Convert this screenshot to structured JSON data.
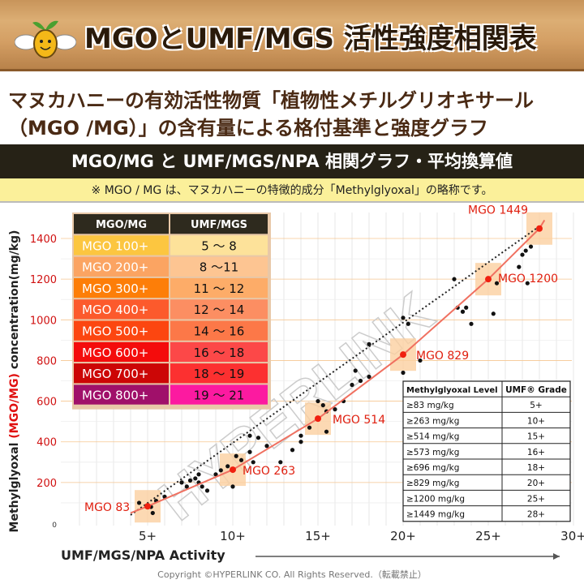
{
  "header": {
    "title": "MGOとUMF/MGS 活性強度相関表",
    "subtitle_line1": "マヌカハニーの有効活性物質「植物性メチルグリオキサール",
    "subtitle_line2": "（MGO /MG）」の含有量による格付基準と強度グラフ",
    "band": "MGO/MG と UMF/MGS/NPA 相関グラフ・平均換算値",
    "note": "※ MGO / MG は、マヌカハニーの特徴的成分「Methylglyoxal」の略称です。"
  },
  "watermark": "HYPERLINK",
  "footer": "Copyright ©HYPERLINK CO.  All Rights Reserved.（転載禁止）",
  "colors": {
    "curve": "#f07060",
    "point_label": "#e02010",
    "band": "#fbd0a0"
  },
  "chart_data": {
    "type": "scatter",
    "xlabel": "UMF/MGS/NPA Activity",
    "ylabel_parts": [
      "Methylglyoxal ",
      "(MGO/MG)",
      " concentration(mg/kg)"
    ],
    "xlim": [
      0,
      30
    ],
    "ylim": [
      0,
      1450
    ],
    "xticks": [
      5,
      10,
      15,
      20,
      25,
      30
    ],
    "xtick_labels": [
      "5+",
      "10+",
      "15+",
      "20+",
      "25+",
      "30+"
    ],
    "yticks": [
      0,
      200,
      400,
      600,
      800,
      1000,
      1200,
      1400
    ],
    "grid": true,
    "curve": {
      "x": [
        5,
        10,
        15,
        20,
        25,
        28
      ],
      "y": [
        83,
        263,
        514,
        829,
        1200,
        1449
      ],
      "labels": [
        "MGO 83",
        "MGO 263",
        "MGO 514",
        "MGO 829",
        "MGO 1200",
        "MGO 1449"
      ]
    },
    "trend": {
      "x": [
        4,
        28
      ],
      "y": [
        40,
        1460
      ]
    },
    "points": [
      [
        4.5,
        100
      ],
      [
        5.5,
        110
      ],
      [
        5.3,
        50
      ],
      [
        5.2,
        80
      ],
      [
        6,
        130
      ],
      [
        7,
        200
      ],
      [
        7.3,
        180
      ],
      [
        7.5,
        210
      ],
      [
        7.8,
        220
      ],
      [
        8,
        240
      ],
      [
        8.2,
        180
      ],
      [
        8,
        200
      ],
      [
        8.5,
        160
      ],
      [
        9,
        240
      ],
      [
        9.3,
        260
      ],
      [
        9.7,
        280
      ],
      [
        10,
        180
      ],
      [
        10.2,
        330
      ],
      [
        10.5,
        310
      ],
      [
        11,
        350
      ],
      [
        11,
        430
      ],
      [
        11.2,
        300
      ],
      [
        11.5,
        420
      ],
      [
        12,
        380
      ],
      [
        12.8,
        300
      ],
      [
        13.5,
        360
      ],
      [
        14,
        430
      ],
      [
        14,
        400
      ],
      [
        14.5,
        470
      ],
      [
        15,
        600
      ],
      [
        15.3,
        580
      ],
      [
        15.5,
        550
      ],
      [
        15.5,
        450
      ],
      [
        16,
        560
      ],
      [
        16.5,
        600
      ],
      [
        17,
        680
      ],
      [
        17.5,
        700
      ],
      [
        18,
        720
      ],
      [
        18,
        880
      ],
      [
        17.2,
        750
      ],
      [
        20,
        740
      ],
      [
        20,
        1010
      ],
      [
        20.3,
        980
      ],
      [
        21,
        800
      ],
      [
        23,
        1200
      ],
      [
        23.2,
        1060
      ],
      [
        23.5,
        1040
      ],
      [
        23.7,
        1060
      ],
      [
        24,
        980
      ],
      [
        25.5,
        1180
      ],
      [
        25.3,
        1030
      ],
      [
        26.8,
        1260
      ],
      [
        27,
        1320
      ],
      [
        27.2,
        1340
      ],
      [
        27.5,
        1360
      ],
      [
        27.3,
        1180
      ]
    ]
  },
  "grade_table": {
    "headers": [
      "MGO/MG",
      "UMF/MGS"
    ],
    "rows": [
      {
        "mgo": "MGO 100+",
        "umf": "5 ～ 8",
        "c1": "#fcc640",
        "c2": "#fde29a"
      },
      {
        "mgo": "MGO 200+",
        "umf": "8 ～11",
        "c1": "#fba462",
        "c2": "#fdc592"
      },
      {
        "mgo": "MGO 300+",
        "umf": "11 ～ 12",
        "c1": "#fd7e08",
        "c2": "#fdac68"
      },
      {
        "mgo": "MGO 400+",
        "umf": "12 ～ 14",
        "c1": "#fc5a2c",
        "c2": "#fc8e62"
      },
      {
        "mgo": "MGO 500+",
        "umf": "14 ～ 16",
        "c1": "#fc4610",
        "c2": "#fc7848"
      },
      {
        "mgo": "MGO 600+",
        "umf": "16 ～ 18",
        "c1": "#f40c0c",
        "c2": "#fc4848"
      },
      {
        "mgo": "MGO 700+",
        "umf": "18 ～ 19",
        "c1": "#cc0606",
        "c2": "#fc3030"
      },
      {
        "mgo": "MGO 800+",
        "umf": "19 ～ 21",
        "c1": "#a0106a",
        "c2": "#fc1aa0"
      }
    ]
  },
  "umf_table": {
    "headers": [
      "Methylglyoxal Level",
      "UMF® Grade"
    ],
    "rows": [
      [
        "≥83 mg/kg",
        "5+"
      ],
      [
        "≥263 mg/kg",
        "10+"
      ],
      [
        "≥514 mg/kg",
        "15+"
      ],
      [
        "≥573 mg/kg",
        "16+"
      ],
      [
        "≥696 mg/kg",
        "18+"
      ],
      [
        "≥829 mg/kg",
        "20+"
      ],
      [
        "≥1200 mg/kg",
        "25+"
      ],
      [
        "≥1449 mg/kg",
        "28+"
      ]
    ]
  }
}
